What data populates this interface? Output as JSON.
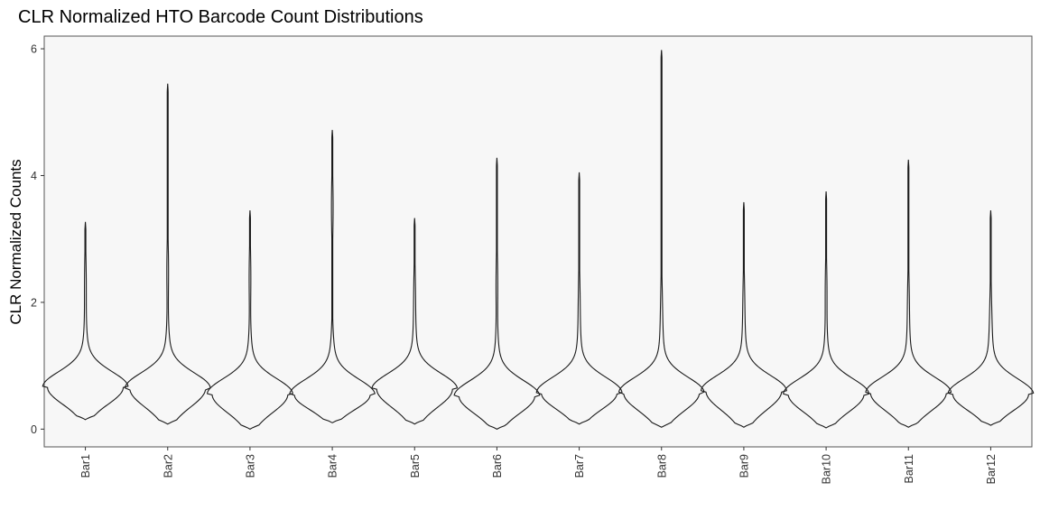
{
  "chart_data": {
    "type": "violin",
    "title": "CLR Normalized HTO Barcode Count Distributions",
    "xlabel": "",
    "ylabel": "CLR Normalized Counts",
    "ylim": [
      -0.28,
      6.2
    ],
    "yticks": [
      0,
      2,
      4,
      6
    ],
    "grid": false,
    "legend": "none",
    "colors": {
      "panel": "#f7f7f7",
      "outline": "#1a1a1a",
      "border": "#555555"
    },
    "categories": [
      "Bar1",
      "Bar2",
      "Bar3",
      "Bar4",
      "Bar5",
      "Bar6",
      "Bar7",
      "Bar8",
      "Bar9",
      "Bar10",
      "Bar11",
      "Bar12"
    ],
    "series": [
      {
        "category": "Bar1",
        "min": 0.15,
        "max": 3.27,
        "mode": 0.66,
        "upper_bulge": 2.3
      },
      {
        "category": "Bar2",
        "min": 0.08,
        "max": 5.45,
        "mode": 0.64,
        "upper_bulge": 2.5
      },
      {
        "category": "Bar3",
        "min": 0.0,
        "max": 3.45,
        "mode": 0.55,
        "upper_bulge": 2.4
      },
      {
        "category": "Bar4",
        "min": 0.1,
        "max": 4.72,
        "mode": 0.54,
        "upper_bulge": 3.5
      },
      {
        "category": "Bar5",
        "min": 0.08,
        "max": 3.33,
        "mode": 0.63,
        "upper_bulge": 2.1
      },
      {
        "category": "Bar6",
        "min": 0.0,
        "max": 4.28,
        "mode": 0.52,
        "upper_bulge": 2.3
      },
      {
        "category": "Bar7",
        "min": 0.08,
        "max": 4.05,
        "mode": 0.57,
        "upper_bulge": 2.0
      },
      {
        "category": "Bar8",
        "min": 0.03,
        "max": 5.98,
        "mode": 0.57,
        "upper_bulge": 1.9
      },
      {
        "category": "Bar9",
        "min": 0.03,
        "max": 3.58,
        "mode": 0.6,
        "upper_bulge": 2.0
      },
      {
        "category": "Bar10",
        "min": 0.02,
        "max": 3.75,
        "mode": 0.55,
        "upper_bulge": 2.2
      },
      {
        "category": "Bar11",
        "min": 0.03,
        "max": 4.25,
        "mode": 0.57,
        "upper_bulge": 2.0
      },
      {
        "category": "Bar12",
        "min": 0.06,
        "max": 3.45,
        "mode": 0.55,
        "upper_bulge": 1.8
      }
    ]
  }
}
